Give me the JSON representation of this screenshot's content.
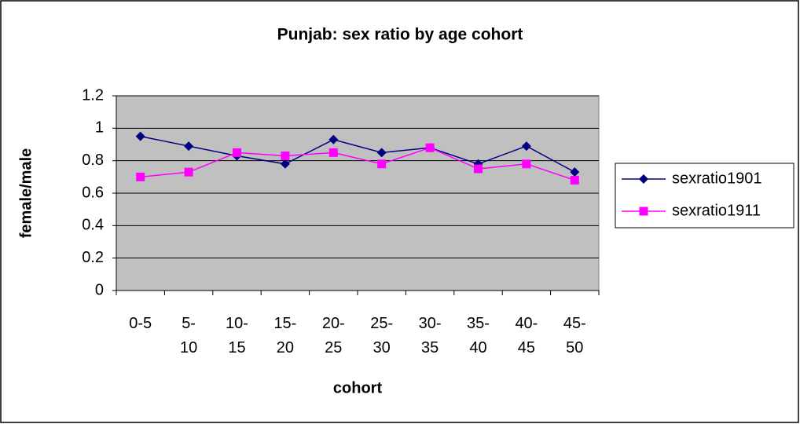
{
  "chart_data": {
    "type": "line",
    "title": "Punjab: sex ratio by age cohort",
    "x_label": "cohort",
    "y_label": "female/male",
    "categories": [
      "0-5",
      "5-10",
      "10-15",
      "15-20",
      "20-25",
      "25-30",
      "30-35",
      "35-40",
      "40-45",
      "45-50"
    ],
    "series": [
      {
        "name": "sexratio1901",
        "color": "#000080",
        "marker": "diamond",
        "values": [
          0.95,
          0.89,
          0.83,
          0.78,
          0.93,
          0.85,
          0.88,
          0.78,
          0.89,
          0.73
        ]
      },
      {
        "name": "sexratio1911",
        "color": "#ff00ff",
        "marker": "square",
        "values": [
          0.7,
          0.73,
          0.85,
          0.83,
          0.85,
          0.78,
          0.88,
          0.75,
          0.78,
          0.68
        ]
      }
    ],
    "ylim": [
      0,
      1.2
    ],
    "yticks": [
      0,
      0.2,
      0.4,
      0.6,
      0.8,
      1,
      1.2
    ],
    "grid": true,
    "legend": "right"
  }
}
